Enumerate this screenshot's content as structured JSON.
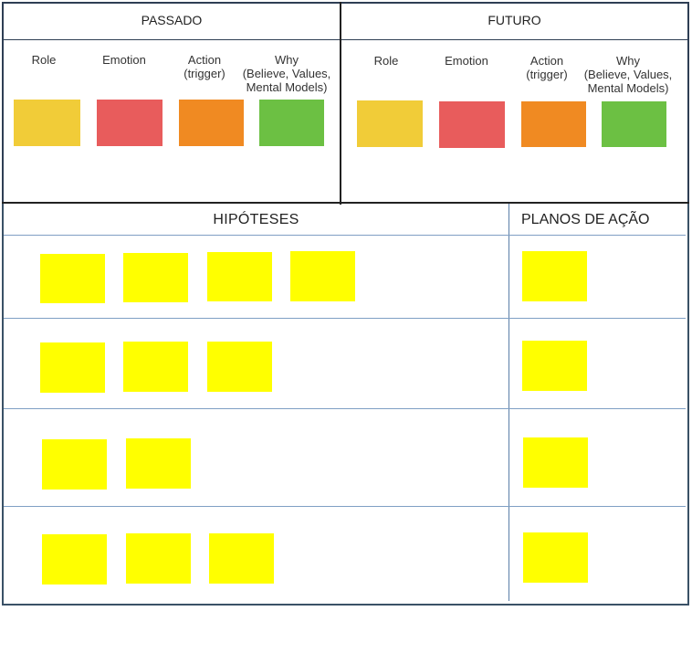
{
  "top": {
    "left_title": "PASSADO",
    "right_title": "FUTURO",
    "columns": [
      {
        "label": "Role",
        "color": "#f1cc38"
      },
      {
        "label": "Emotion",
        "color": "#e85c5c"
      },
      {
        "label": "Action\n(trigger)",
        "color": "#f08a22"
      },
      {
        "label": "Why\n(Believe, Values,\nMental Models)",
        "color": "#6cc043"
      }
    ]
  },
  "bottom": {
    "hypotheses_title": "HIPÓTESES",
    "action_plans_title": "PLANOS DE AÇÃO",
    "sticky_color": "#ffff00",
    "rows": [
      {
        "hypothesis_notes": 4,
        "action_notes": 1
      },
      {
        "hypothesis_notes": 3,
        "action_notes": 1
      },
      {
        "hypothesis_notes": 2,
        "action_notes": 1
      },
      {
        "hypothesis_notes": 3,
        "action_notes": 1
      }
    ]
  }
}
